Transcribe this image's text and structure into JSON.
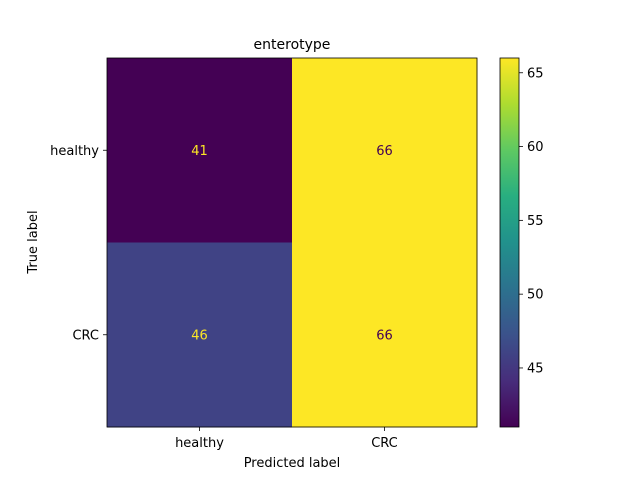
{
  "chart_data": {
    "type": "heatmap",
    "title": "enterotype",
    "xlabel": "Predicted label",
    "ylabel": "True label",
    "x_categories": [
      "healthy",
      "CRC"
    ],
    "y_categories": [
      "healthy",
      "CRC"
    ],
    "values": [
      [
        41,
        66
      ],
      [
        46,
        66
      ]
    ],
    "colormap": "viridis",
    "colorbar": {
      "range": [
        41,
        66
      ],
      "ticks": [
        "45",
        "50",
        "55",
        "60",
        "65"
      ]
    },
    "cell_text_colors": {
      "dark_cell": "#fde725",
      "light_cell": "#440154"
    }
  }
}
